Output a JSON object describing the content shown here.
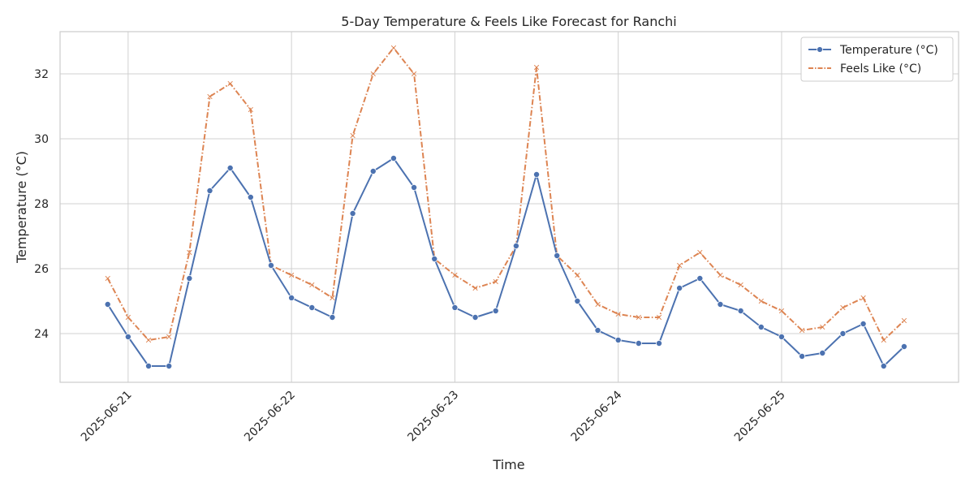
{
  "chart_data": {
    "type": "line",
    "title": "5-Day Temperature & Feels Like Forecast for Ranchi",
    "xlabel": "Time",
    "ylabel": "Temperature (°C)",
    "x_ticks": [
      "2025-06-21",
      "2025-06-22",
      "2025-06-23",
      "2025-06-24",
      "2025-06-25"
    ],
    "y_ticks": [
      24,
      26,
      28,
      30,
      32
    ],
    "ylim": [
      22.5,
      33.3
    ],
    "xlim": [
      "2025-06-20 14:00",
      "2025-06-26 02:00"
    ],
    "grid": true,
    "legend_position": "top-right",
    "x": [
      "2025-06-20 21:00",
      "2025-06-21 00:00",
      "2025-06-21 03:00",
      "2025-06-21 06:00",
      "2025-06-21 09:00",
      "2025-06-21 12:00",
      "2025-06-21 15:00",
      "2025-06-21 18:00",
      "2025-06-21 21:00",
      "2025-06-22 00:00",
      "2025-06-22 03:00",
      "2025-06-22 06:00",
      "2025-06-22 09:00",
      "2025-06-22 12:00",
      "2025-06-22 15:00",
      "2025-06-22 18:00",
      "2025-06-22 21:00",
      "2025-06-23 00:00",
      "2025-06-23 03:00",
      "2025-06-23 06:00",
      "2025-06-23 09:00",
      "2025-06-23 12:00",
      "2025-06-23 15:00",
      "2025-06-23 18:00",
      "2025-06-23 21:00",
      "2025-06-24 00:00",
      "2025-06-24 03:00",
      "2025-06-24 06:00",
      "2025-06-24 09:00",
      "2025-06-24 12:00",
      "2025-06-24 15:00",
      "2025-06-24 18:00",
      "2025-06-24 21:00",
      "2025-06-25 00:00",
      "2025-06-25 03:00",
      "2025-06-25 06:00",
      "2025-06-25 09:00",
      "2025-06-25 12:00",
      "2025-06-25 15:00",
      "2025-06-25 18:00"
    ],
    "series": [
      {
        "name": "Temperature (°C)",
        "color": "#4c72b0",
        "style": "solid",
        "marker": "circle",
        "values": [
          24.9,
          23.9,
          23.0,
          23.0,
          25.7,
          28.4,
          29.1,
          28.2,
          26.1,
          25.1,
          24.8,
          24.5,
          27.7,
          29.0,
          29.4,
          28.5,
          26.3,
          24.8,
          24.5,
          24.7,
          26.7,
          28.9,
          26.4,
          25.0,
          24.1,
          23.8,
          23.7,
          23.7,
          25.4,
          25.7,
          24.9,
          24.7,
          24.2,
          23.9,
          23.3,
          23.4,
          24.0,
          24.3,
          23.0,
          23.6
        ]
      },
      {
        "name": "Feels Like (°C)",
        "color": "#dd8452",
        "style": "dashdot",
        "marker": "x",
        "values": [
          25.7,
          24.5,
          23.8,
          23.9,
          26.5,
          31.3,
          31.7,
          30.9,
          26.1,
          25.8,
          25.5,
          25.1,
          30.1,
          32.0,
          32.8,
          32.0,
          26.3,
          25.8,
          25.4,
          25.6,
          26.7,
          32.2,
          26.4,
          25.8,
          24.9,
          24.6,
          24.5,
          24.5,
          26.1,
          26.5,
          25.8,
          25.5,
          25.0,
          24.7,
          24.1,
          24.2,
          24.8,
          25.1,
          23.8,
          24.4
        ]
      }
    ]
  }
}
